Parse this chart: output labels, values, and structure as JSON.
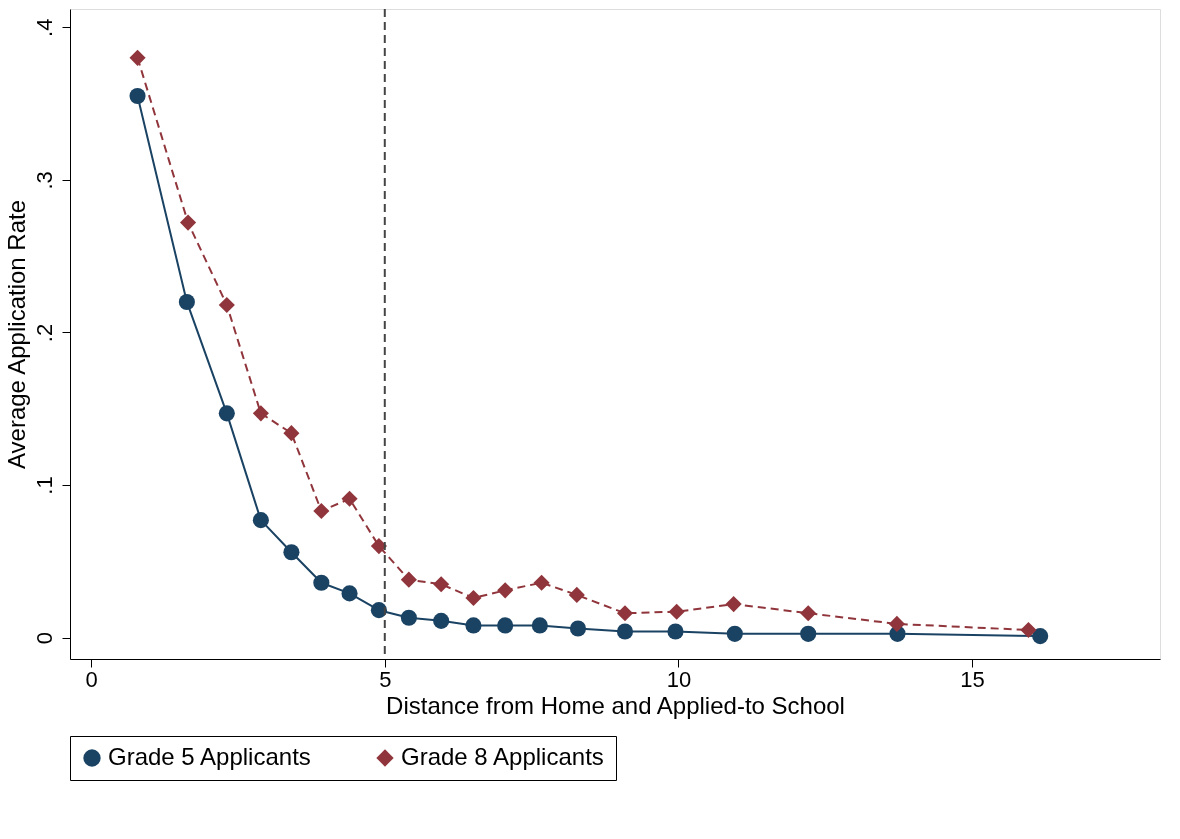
{
  "chart_data": {
    "type": "line",
    "xlabel": "Distance from Home and Applied-to School",
    "ylabel": "Average Application Rate",
    "xlim": [
      -0.36,
      18.2
    ],
    "xticks": [
      0,
      5,
      10,
      15
    ],
    "ylim": [
      -0.014,
      0.412
    ],
    "yticks": [
      0,
      {
        "value": 0.1,
        "label": ".1"
      },
      {
        "value": 0.2,
        "label": ".2"
      },
      {
        "value": 0.3,
        "label": ".3"
      },
      {
        "value": 0.4,
        "label": ".4"
      }
    ],
    "grid": false,
    "legend": "bottom",
    "ref_lines": [
      {
        "axis": "x",
        "value": 5,
        "line_style": "dashed",
        "color": "#444444"
      }
    ],
    "series": [
      {
        "name": "Grade 5 Applicants",
        "color": "#1a4263",
        "marker": "circle",
        "line_style": "solid",
        "x": [
          0.79,
          1.63,
          2.31,
          2.89,
          3.41,
          3.92,
          4.4,
          4.9,
          5.41,
          5.96,
          6.51,
          7.05,
          7.64,
          8.29,
          9.09,
          9.95,
          10.96,
          12.21,
          13.73,
          16.16
        ],
        "values": [
          0.355,
          0.22,
          0.147,
          0.077,
          0.056,
          0.036,
          0.029,
          0.018,
          0.013,
          0.011,
          0.008,
          0.008,
          0.008,
          0.006,
          0.004,
          0.004,
          0.0025,
          0.0025,
          0.0025,
          0.001
        ]
      },
      {
        "name": "Grade 8 Applicants",
        "color": "#90353b",
        "marker": "diamond",
        "line_style": "dashed",
        "x": [
          0.79,
          1.65,
          2.31,
          2.89,
          3.41,
          3.92,
          4.4,
          4.9,
          5.41,
          5.96,
          6.51,
          7.05,
          7.67,
          8.27,
          9.09,
          9.97,
          10.94,
          12.21,
          13.72,
          15.96
        ],
        "values": [
          0.38,
          0.272,
          0.218,
          0.147,
          0.134,
          0.083,
          0.091,
          0.06,
          0.038,
          0.035,
          0.026,
          0.031,
          0.036,
          0.028,
          0.016,
          0.017,
          0.022,
          0.016,
          0.009,
          0.005
        ]
      }
    ]
  }
}
